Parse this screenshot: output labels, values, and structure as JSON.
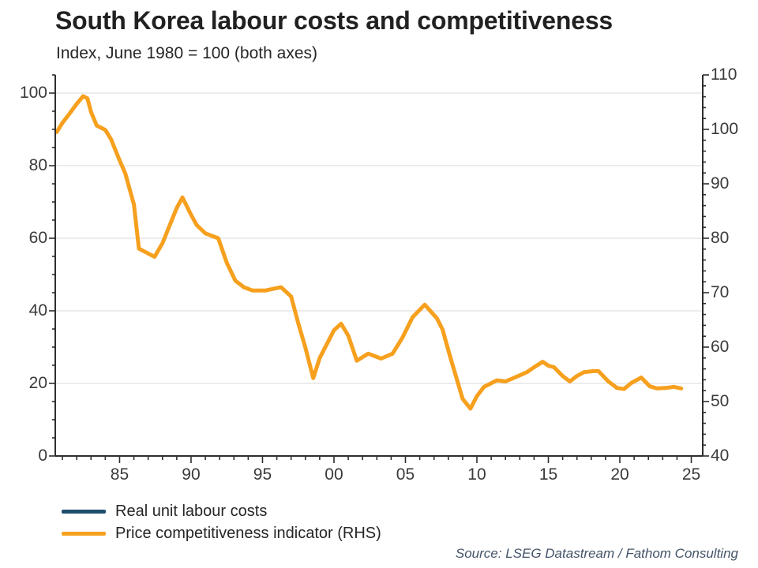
{
  "header": {
    "title": "South Korea labour costs and competitiveness",
    "subtitle": "Index, June 1980 = 100 (both axes)"
  },
  "source": {
    "text": "Source: LSEG Datastream / Fathom Consulting"
  },
  "colors": {
    "background": "#FFFFFF",
    "navy": "#1D4E6E",
    "orange": "#F6A01E",
    "gridline": "#D9D9D9",
    "axis": "#2E2E2E",
    "title_text": "#212121",
    "tick_text": "#3A3A3A",
    "legend_text": "#262626",
    "source_text": "#44546A"
  },
  "legend": {
    "items": [
      {
        "label": "Real unit labour costs",
        "color": "#1D4E6E"
      },
      {
        "label": "Price competitiveness indicator (RHS)",
        "color": "#F6A01E"
      }
    ]
  },
  "chart_data": {
    "type": "line",
    "title": "South Korea labour costs and competitiveness",
    "subtitle": "Index, June 1980 = 100 (both axes)",
    "xlabel": "",
    "ylabel": "",
    "grid": "horizontal",
    "legend_position": "bottom-left",
    "x_axis": {
      "range": [
        1980.5,
        2025.8
      ],
      "major_tick_years": [
        1985,
        1990,
        1995,
        2000,
        2005,
        2010,
        2015,
        2020,
        2025
      ],
      "tick_labels": [
        "85",
        "90",
        "95",
        "00",
        "05",
        "10",
        "15",
        "20",
        "25"
      ],
      "minor_tick_interval_years": 1
    },
    "left_axis": {
      "range": [
        0,
        105
      ],
      "tick_values": [
        0,
        20,
        40,
        60,
        80,
        100
      ],
      "tick_labels": [
        "0",
        "20",
        "40",
        "60",
        "80",
        "100"
      ],
      "minor_tick_interval": 5,
      "gridline_values": [
        20,
        40,
        60,
        80,
        100
      ]
    },
    "right_axis": {
      "range": [
        40,
        110
      ],
      "tick_values": [
        40,
        50,
        60,
        70,
        80,
        90,
        100,
        110
      ],
      "tick_labels": [
        "40",
        "50",
        "60",
        "70",
        "80",
        "90",
        "100",
        "110"
      ],
      "minor_tick_interval": 2
    },
    "series": [
      {
        "name": "Real unit labour costs",
        "axis": "left",
        "color": "#1D4E6E",
        "visible_in_plot": false,
        "points": []
      },
      {
        "name": "Price competitiveness indicator (RHS)",
        "axis": "right",
        "color": "#F6A01E",
        "visible_in_plot": true,
        "points": [
          [
            1980.6,
            99.5
          ],
          [
            1981.0,
            101.2
          ],
          [
            1981.5,
            102.9
          ],
          [
            1982.0,
            104.7
          ],
          [
            1982.45,
            106.1
          ],
          [
            1982.75,
            105.7
          ],
          [
            1983.0,
            103.2
          ],
          [
            1983.4,
            100.7
          ],
          [
            1984.0,
            99.9
          ],
          [
            1984.4,
            98.2
          ],
          [
            1985.0,
            94.3
          ],
          [
            1985.4,
            91.9
          ],
          [
            1986.0,
            86.2
          ],
          [
            1986.35,
            78.1
          ],
          [
            1987.0,
            77.2
          ],
          [
            1987.45,
            76.6
          ],
          [
            1988.0,
            79.1
          ],
          [
            1989.0,
            85.6
          ],
          [
            1989.4,
            87.5
          ],
          [
            1990.0,
            84.3
          ],
          [
            1990.4,
            82.4
          ],
          [
            1991.0,
            80.9
          ],
          [
            1991.9,
            80.0
          ],
          [
            1992.5,
            75.5
          ],
          [
            1993.1,
            72.2
          ],
          [
            1993.7,
            71.0
          ],
          [
            1994.3,
            70.4
          ],
          [
            1995.2,
            70.4
          ],
          [
            1996.3,
            71.0
          ],
          [
            1997.0,
            69.3
          ],
          [
            1997.5,
            64.4
          ],
          [
            1998.0,
            59.9
          ],
          [
            1998.55,
            54.3
          ],
          [
            1999.0,
            58.0
          ],
          [
            2000.0,
            63.1
          ],
          [
            2000.5,
            64.3
          ],
          [
            2001.0,
            62.1
          ],
          [
            2001.6,
            57.5
          ],
          [
            2002.4,
            58.8
          ],
          [
            2003.3,
            57.9
          ],
          [
            2004.1,
            58.8
          ],
          [
            2004.8,
            61.8
          ],
          [
            2005.5,
            65.5
          ],
          [
            2006.35,
            67.8
          ],
          [
            2007.2,
            65.3
          ],
          [
            2007.6,
            63.2
          ],
          [
            2008.1,
            58.5
          ],
          [
            2009.0,
            50.5
          ],
          [
            2009.55,
            48.7
          ],
          [
            2010.0,
            51.0
          ],
          [
            2010.5,
            52.7
          ],
          [
            2011.4,
            53.9
          ],
          [
            2012.0,
            53.7
          ],
          [
            2012.9,
            54.7
          ],
          [
            2013.5,
            55.4
          ],
          [
            2014.0,
            56.3
          ],
          [
            2014.6,
            57.3
          ],
          [
            2015.0,
            56.6
          ],
          [
            2015.4,
            56.3
          ],
          [
            2016.0,
            54.7
          ],
          [
            2016.5,
            53.7
          ],
          [
            2017.0,
            54.7
          ],
          [
            2017.5,
            55.4
          ],
          [
            2018.2,
            55.6
          ],
          [
            2018.5,
            55.6
          ],
          [
            2019.2,
            53.7
          ],
          [
            2019.8,
            52.5
          ],
          [
            2020.3,
            52.3
          ],
          [
            2020.8,
            53.4
          ],
          [
            2021.5,
            54.4
          ],
          [
            2022.1,
            52.8
          ],
          [
            2022.6,
            52.4
          ],
          [
            2023.2,
            52.5
          ],
          [
            2023.8,
            52.7
          ],
          [
            2024.3,
            52.4
          ]
        ]
      }
    ]
  }
}
